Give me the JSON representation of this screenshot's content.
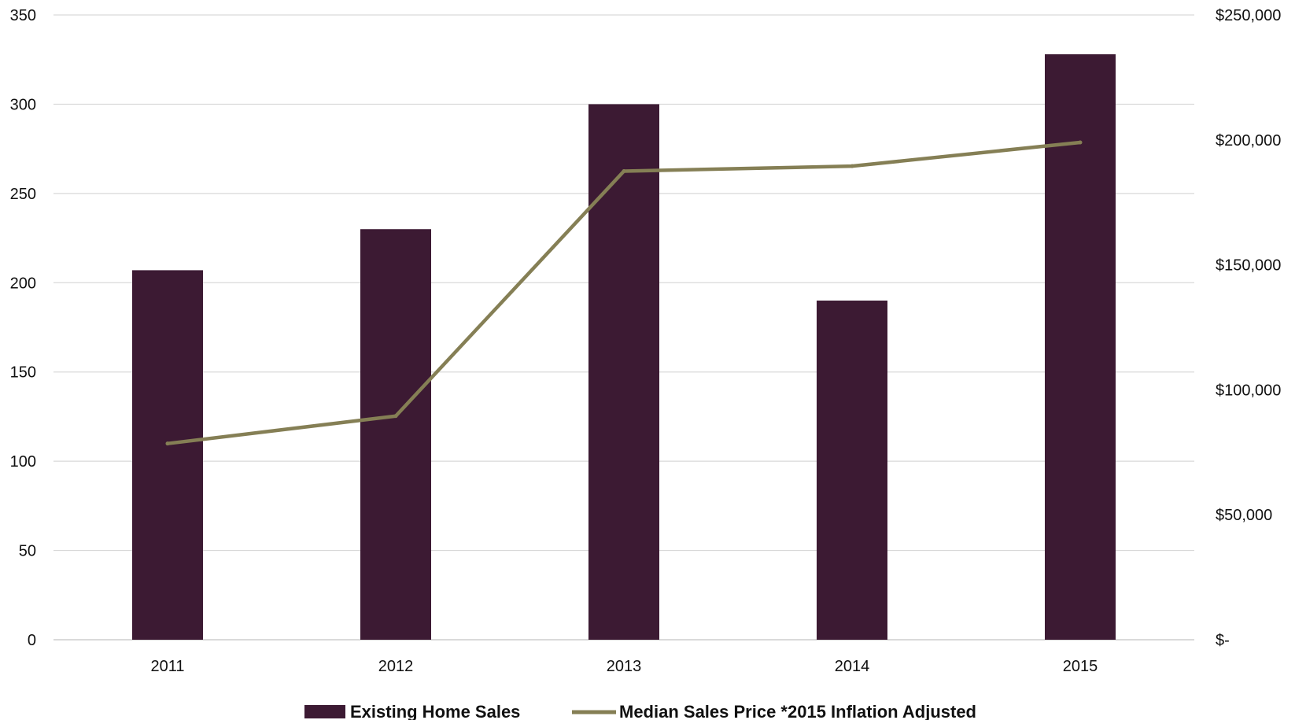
{
  "chart_data": {
    "type": "bar+line",
    "categories": [
      "2011",
      "2012",
      "2013",
      "2014",
      "2015"
    ],
    "series": [
      {
        "name": "Existing Home Sales",
        "type": "bar",
        "axis": "left",
        "color": "#3c1a33",
        "values": [
          207,
          230,
          300,
          190,
          328
        ]
      },
      {
        "name": "Median Sales Price *2015 Inflation Adjusted",
        "type": "line",
        "axis": "right",
        "color": "#857f55",
        "values": [
          78500,
          89500,
          187500,
          189500,
          199000
        ]
      }
    ],
    "y_left": {
      "min": 0,
      "max": 350,
      "ticks": [
        0,
        50,
        100,
        150,
        200,
        250,
        300,
        350
      ],
      "tick_labels": [
        "0",
        "50",
        "100",
        "150",
        "200",
        "250",
        "300",
        "350"
      ]
    },
    "y_right": {
      "min": 0,
      "max": 250000,
      "ticks": [
        0,
        50000,
        100000,
        150000,
        200000,
        250000
      ],
      "tick_labels": [
        "$-",
        "$50,000",
        "$100,000",
        "$150,000",
        "$200,000",
        "$250,000"
      ]
    },
    "grid": true,
    "gridline_color": "#d9d9d9",
    "legend_position": "bottom",
    "title": "",
    "xlabel": "",
    "ylabel": ""
  }
}
